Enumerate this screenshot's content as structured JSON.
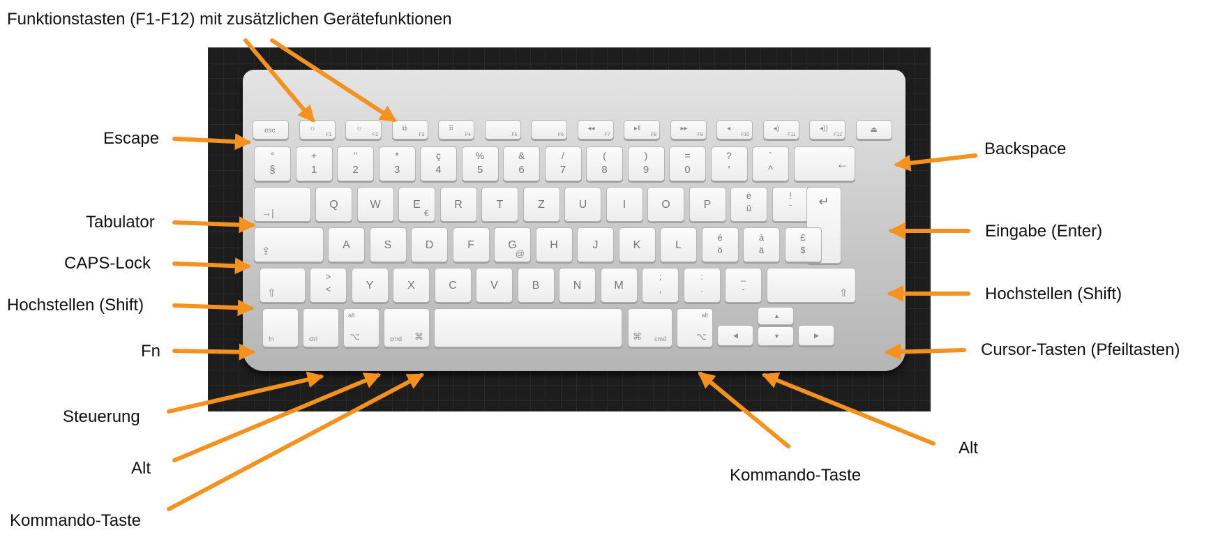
{
  "labels": {
    "function_keys": "Funktionstasten (F1-F12) mit zusätzlichen Gerätefunktionen",
    "escape": "Escape",
    "tabulator": "Tabulator",
    "caps_lock": "CAPS-Lock",
    "shift_left": "Hochstellen (Shift)",
    "fn": "Fn",
    "control": "Steuerung",
    "alt_left": "Alt",
    "command_left": "Kommando-Taste",
    "backspace": "Backspace",
    "enter": "Eingabe (Enter)",
    "shift_right": "Hochstellen (Shift)",
    "cursor_keys": "Cursor-Tasten (Pfeiltasten)",
    "alt_right": "Alt",
    "command_right": "Kommando-Taste"
  },
  "arrow_color": "#f5921e",
  "keyboard": {
    "fn_row": [
      "esc",
      "F1",
      "F2",
      "F3",
      "F4",
      "F5",
      "F6",
      "F7",
      "F8",
      "F9",
      "F10",
      "F11",
      "F12"
    ],
    "fn_icons": [
      "",
      "☼",
      "☼",
      "⧉",
      "⠿",
      "",
      "",
      "◂◂",
      "▸ǁ",
      "▸▸",
      "◂",
      "◂)",
      "◂))",
      "⏏"
    ],
    "number_row": [
      [
        "°",
        "§"
      ],
      [
        "+",
        "1"
      ],
      [
        "\"",
        "2"
      ],
      [
        "*",
        "3"
      ],
      [
        "ç",
        "4"
      ],
      [
        "%",
        "5"
      ],
      [
        "&",
        "6"
      ],
      [
        "/",
        "7"
      ],
      [
        "(",
        "8"
      ],
      [
        ")",
        "9"
      ],
      [
        "=",
        "0"
      ],
      [
        "?",
        "'"
      ],
      [
        "`",
        "^"
      ]
    ],
    "qwertz_row": [
      "Q",
      "W",
      "E",
      "R",
      "T",
      "Z",
      "U",
      "I",
      "O",
      "P"
    ],
    "qwertz_extra": [
      [
        "è",
        "ü"
      ],
      [
        "!",
        "¨"
      ]
    ],
    "qwertz_sub": {
      "E": "€"
    },
    "asdf_row": [
      "A",
      "S",
      "D",
      "F",
      "G",
      "H",
      "J",
      "K",
      "L"
    ],
    "asdf_extra": [
      [
        "é",
        "ö"
      ],
      [
        "à",
        "ä"
      ],
      [
        "£",
        "$"
      ]
    ],
    "asdf_sub": {
      "G": "@"
    },
    "yxc_row": [
      [
        ">",
        "<"
      ],
      [
        "",
        "Y"
      ],
      [
        "",
        "X"
      ],
      [
        "",
        "C"
      ],
      [
        "",
        "V"
      ],
      [
        "",
        "B"
      ],
      [
        "",
        "N"
      ],
      [
        "",
        "M"
      ],
      [
        ";",
        ","
      ],
      [
        ":",
        "."
      ],
      [
        "_",
        "-"
      ]
    ],
    "tab_symbol": "→|",
    "backspace_symbol": "←",
    "enter_symbol": "↵",
    "shift_symbol": "⇧",
    "caps_symbol": "⇪",
    "fn_key": "fn",
    "ctrl_key": "ctrl",
    "alt_key": "alt",
    "alt_symbol": "⌥",
    "cmd_key": "cmd",
    "cmd_symbol": "⌘",
    "arrow_up": "▲",
    "arrow_left": "◀",
    "arrow_down": "▼",
    "arrow_right": "▶"
  }
}
